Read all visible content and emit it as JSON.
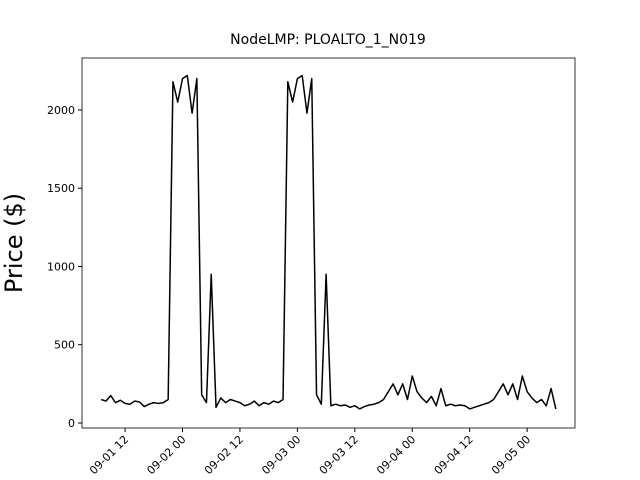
{
  "chart_data": {
    "type": "line",
    "title": "NodeLMP: PLOALTO_1_N019",
    "y_label": "Price ($)",
    "color": "#000000",
    "x": [
      "09-01 07",
      "09-01 08",
      "09-01 09",
      "09-01 10",
      "09-01 11",
      "09-01 12",
      "09-01 13",
      "09-01 14",
      "09-01 15",
      "09-01 16",
      "09-01 17",
      "09-01 18",
      "09-01 19",
      "09-01 20",
      "09-01 21",
      "09-01 22",
      "09-01 23",
      "09-02 00",
      "09-02 01",
      "09-02 02",
      "09-02 03",
      "09-02 04",
      "09-02 05",
      "09-02 06",
      "09-02 07",
      "09-02 08",
      "09-02 09",
      "09-02 10",
      "09-02 11",
      "09-02 12",
      "09-02 13",
      "09-02 14",
      "09-02 15",
      "09-02 16",
      "09-02 17",
      "09-02 18",
      "09-02 19",
      "09-02 20",
      "09-02 21",
      "09-02 22",
      "09-02 23",
      "09-03 00",
      "09-03 01",
      "09-03 02",
      "09-03 03",
      "09-03 04",
      "09-03 05",
      "09-03 06",
      "09-03 07",
      "09-03 08",
      "09-03 09",
      "09-03 10",
      "09-03 11",
      "09-03 12",
      "09-03 13",
      "09-03 14",
      "09-03 15",
      "09-03 16",
      "09-03 17",
      "09-03 18",
      "09-03 19",
      "09-03 20",
      "09-03 21",
      "09-03 22",
      "09-03 23",
      "09-04 00",
      "09-04 01",
      "09-04 02",
      "09-04 03",
      "09-04 04",
      "09-04 05",
      "09-04 06",
      "09-04 07",
      "09-04 08",
      "09-04 09",
      "09-04 10",
      "09-04 11",
      "09-04 12",
      "09-04 13",
      "09-04 14",
      "09-04 15",
      "09-04 16",
      "09-04 17",
      "09-04 18",
      "09-04 19",
      "09-04 20",
      "09-04 21",
      "09-04 22",
      "09-04 23",
      "09-05 00",
      "09-05 01",
      "09-05 02",
      "09-05 03",
      "09-05 04",
      "09-05 05",
      "09-05 06"
    ],
    "values": [
      150,
      140,
      175,
      130,
      145,
      125,
      120,
      140,
      135,
      105,
      120,
      130,
      125,
      130,
      150,
      2180,
      2050,
      2200,
      2220,
      1980,
      2200,
      180,
      130,
      950,
      100,
      160,
      130,
      150,
      140,
      130,
      110,
      120,
      140,
      110,
      130,
      120,
      140,
      130,
      150,
      2180,
      2050,
      2200,
      2220,
      1980,
      2200,
      180,
      120,
      950,
      110,
      120,
      110,
      115,
      100,
      110,
      90,
      105,
      115,
      120,
      130,
      150,
      200,
      250,
      180,
      250,
      150,
      300,
      200,
      160,
      130,
      170,
      110,
      220,
      110,
      120,
      110,
      115,
      110,
      90,
      100,
      110,
      120,
      130,
      150,
      200,
      250,
      180,
      250,
      150,
      300,
      200,
      160,
      130,
      150,
      110,
      220,
      90
    ],
    "xlim": [
      "09-01 03",
      "09-05 10"
    ],
    "xticks": [
      "09-01 12",
      "09-02 00",
      "09-02 12",
      "09-03 00",
      "09-03 12",
      "09-04 00",
      "09-04 12",
      "09-05 00"
    ],
    "ylim": [
      -32,
      2332
    ],
    "yticks": [
      0,
      500,
      1000,
      1500,
      2000
    ]
  }
}
